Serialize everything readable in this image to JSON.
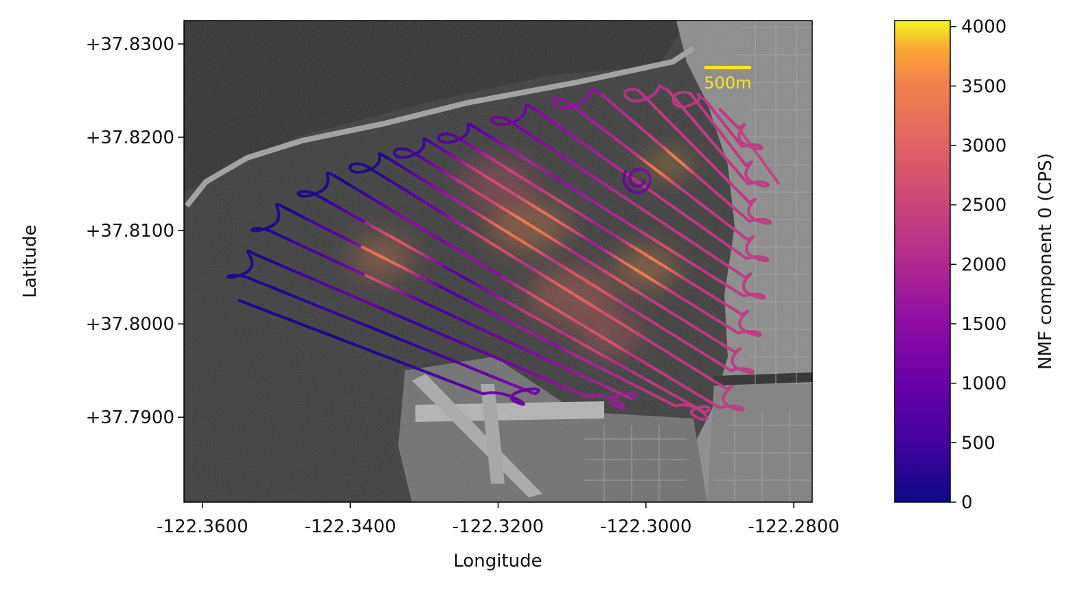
{
  "chart_data": {
    "type": "scatter",
    "xlabel": "Longitude",
    "ylabel": "Latitude",
    "xlim": [
      -122.3625,
      -122.2775
    ],
    "ylim": [
      37.7809,
      37.8325
    ],
    "x_ticks": [
      -122.36,
      -122.34,
      -122.32,
      -122.3,
      -122.28
    ],
    "x_tick_labels": [
      "-122.3600",
      "-122.3400",
      "-122.3200",
      "-122.3000",
      "-122.2800"
    ],
    "y_ticks": [
      37.83,
      37.82,
      37.81,
      37.8,
      37.79
    ],
    "y_tick_labels": [
      "+37.8300",
      "+37.8200",
      "+37.8100",
      "+37.8000",
      "+37.7900"
    ],
    "grid": false,
    "background": "grayscale satellite imagery",
    "scale_bar": {
      "label": "500m",
      "color": "#f5e61e"
    },
    "colorbar": {
      "label": "NMF component 0 (CPS)",
      "colormap": "plasma",
      "range": [
        0,
        4050
      ],
      "ticks": [
        0,
        500,
        1000,
        1500,
        2000,
        2500,
        3000,
        3500,
        4000
      ],
      "tick_labels": [
        "0",
        "500",
        "1000",
        "1500",
        "2000",
        "2500",
        "3000",
        "3500",
        "4000"
      ]
    },
    "flight_lines": {
      "count": 22,
      "west_ends": [
        {
          "lon": -122.355,
          "lat": 37.8025
        },
        {
          "lon": -122.354,
          "lat": 37.805
        },
        {
          "lon": -122.353,
          "lat": 37.8075
        },
        {
          "lon": -122.351,
          "lat": 37.81
        },
        {
          "lon": -122.349,
          "lat": 37.8125
        },
        {
          "lon": -122.345,
          "lat": 37.814
        },
        {
          "lon": -122.342,
          "lat": 37.8158
        },
        {
          "lon": -122.338,
          "lat": 37.817
        },
        {
          "lon": -122.335,
          "lat": 37.8178
        },
        {
          "lon": -122.332,
          "lat": 37.8186
        },
        {
          "lon": -122.329,
          "lat": 37.8194
        },
        {
          "lon": -122.326,
          "lat": 37.8202
        },
        {
          "lon": -122.323,
          "lat": 37.821
        },
        {
          "lon": -122.319,
          "lat": 37.822
        },
        {
          "lon": -122.315,
          "lat": 37.823
        },
        {
          "lon": -122.311,
          "lat": 37.824
        },
        {
          "lon": -122.306,
          "lat": 37.8246
        },
        {
          "lon": -122.301,
          "lat": 37.825
        },
        {
          "lon": -122.297,
          "lat": 37.825
        },
        {
          "lon": -122.294,
          "lat": 37.8247
        },
        {
          "lon": -122.292,
          "lat": 37.824
        },
        {
          "lon": -122.29,
          "lat": 37.823
        }
      ],
      "east_ends": [
        {
          "lon": -122.322,
          "lat": 37.7925
        },
        {
          "lon": -122.315,
          "lat": 37.7925
        },
        {
          "lon": -122.308,
          "lat": 37.7922
        },
        {
          "lon": -122.302,
          "lat": 37.792
        },
        {
          "lon": -122.296,
          "lat": 37.7912
        },
        {
          "lon": -122.292,
          "lat": 37.7905
        },
        {
          "lon": -122.29,
          "lat": 37.791
        },
        {
          "lon": -122.289,
          "lat": 37.793
        },
        {
          "lon": -122.2885,
          "lat": 37.795
        },
        {
          "lon": -122.288,
          "lat": 37.797
        },
        {
          "lon": -122.2875,
          "lat": 37.799
        },
        {
          "lon": -122.287,
          "lat": 37.801
        },
        {
          "lon": -122.2868,
          "lat": 37.803
        },
        {
          "lon": -122.2866,
          "lat": 37.805
        },
        {
          "lon": -122.2864,
          "lat": 37.807
        },
        {
          "lon": -122.2862,
          "lat": 37.809
        },
        {
          "lon": -122.286,
          "lat": 37.811
        },
        {
          "lon": -122.286,
          "lat": 37.813
        },
        {
          "lon": -122.2862,
          "lat": 37.815
        },
        {
          "lon": -122.2865,
          "lat": 37.817
        },
        {
          "lon": -122.287,
          "lat": 37.819
        },
        {
          "lon": -122.2875,
          "lat": 37.821
        }
      ],
      "tail_end": {
        "lon": -122.282,
        "lat": 37.815
      },
      "spiral_center": {
        "lon": -122.301,
        "lat": 37.8155
      }
    },
    "high_intensity_zones": [
      {
        "lon": -122.3358,
        "lat": 37.8072,
        "r_lon": 0.008,
        "r_lat": 0.0045,
        "value": 3400
      },
      {
        "lon": -122.316,
        "lat": 37.8105,
        "r_lon": 0.011,
        "r_lat": 0.0055,
        "value": 3500
      },
      {
        "lon": -122.3,
        "lat": 37.806,
        "r_lon": 0.008,
        "r_lat": 0.0045,
        "value": 3600
      },
      {
        "lon": -122.31,
        "lat": 37.803,
        "r_lon": 0.012,
        "r_lat": 0.006,
        "value": 3100
      },
      {
        "lon": -122.297,
        "lat": 37.817,
        "r_lon": 0.006,
        "r_lat": 0.003,
        "value": 3700
      },
      {
        "lon": -122.305,
        "lat": 37.799,
        "r_lon": 0.009,
        "r_lat": 0.005,
        "value": 2900
      },
      {
        "lon": -122.32,
        "lat": 37.815,
        "r_lon": 0.01,
        "r_lat": 0.005,
        "value": 2700
      }
    ],
    "colors": {
      "water": "#3a3a3a",
      "land": "#8a8a8a",
      "runway": "#b4b4b4",
      "scale_bar": "#f5e61e"
    }
  }
}
